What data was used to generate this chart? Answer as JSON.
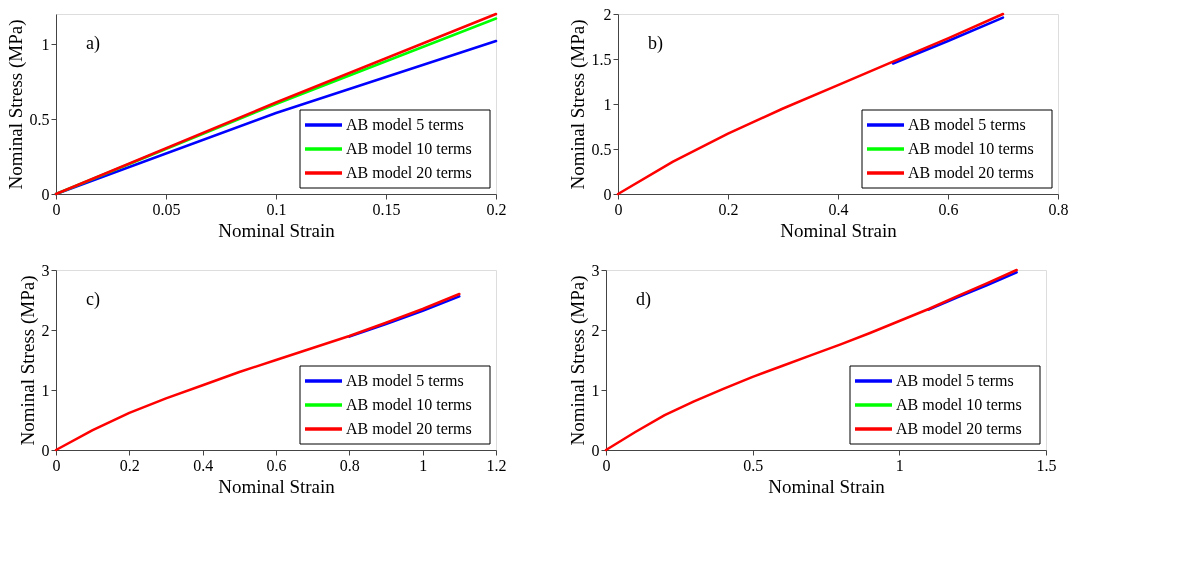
{
  "chart_data": [
    {
      "type": "line",
      "xlabel": "Nominal Strain",
      "ylabel": "Nominal Stress (MPa)",
      "annotations": [
        "a)"
      ],
      "x": [
        0,
        0.1,
        0.2
      ],
      "xlim": [
        0,
        0.2
      ],
      "xticks": [
        0,
        0.05,
        0.1,
        0.15,
        0.2
      ],
      "ylim": [
        0,
        1.2
      ],
      "yticks": [
        0,
        0.5,
        1
      ],
      "legend": "bottom right",
      "series": [
        {
          "name": "AB model 5 terms",
          "color": "#0000ff",
          "values": [
            0,
            0.54,
            1.02
          ]
        },
        {
          "name": "AB model 10 terms",
          "color": "#00ff00",
          "values": [
            0,
            0.6,
            1.17
          ]
        },
        {
          "name": "AB model 20 terms",
          "color": "#ff0000",
          "values": [
            0,
            0.61,
            1.2
          ]
        }
      ]
    },
    {
      "type": "line",
      "xlabel": "Nominal Strain",
      "ylabel": "Nominal Stress (MPa)",
      "annotations": [
        "b)"
      ],
      "x": [
        0,
        0.1,
        0.2,
        0.3,
        0.4,
        0.5,
        0.6,
        0.7
      ],
      "xlim": [
        0,
        0.8
      ],
      "xticks": [
        0,
        0.2,
        0.4,
        0.6,
        0.8
      ],
      "ylim": [
        0,
        2
      ],
      "yticks": [
        0,
        0.5,
        1,
        1.5,
        2
      ],
      "legend": "bottom right",
      "series": [
        {
          "name": "AB model 5 terms",
          "color": "#0000ff",
          "values": [
            null,
            null,
            null,
            null,
            null,
            1.45,
            1.7,
            1.96
          ]
        },
        {
          "name": "AB model 10 terms",
          "color": "#00ff00",
          "values": [
            null,
            null,
            null,
            null,
            null,
            null,
            null,
            null
          ]
        },
        {
          "name": "AB model 20 terms",
          "color": "#ff0000",
          "values": [
            0,
            0.36,
            0.67,
            0.95,
            1.21,
            1.47,
            1.73,
            2.0
          ]
        }
      ]
    },
    {
      "type": "line",
      "xlabel": "Nominal Strain",
      "ylabel": "Nominal Stress (MPa)",
      "annotations": [
        "c)"
      ],
      "x": [
        0,
        0.1,
        0.2,
        0.3,
        0.4,
        0.5,
        0.6,
        0.7,
        0.8,
        0.9,
        1.0,
        1.1
      ],
      "xlim": [
        0,
        1.2
      ],
      "xticks": [
        0,
        0.2,
        0.4,
        0.6,
        0.8,
        1,
        1.2
      ],
      "ylim": [
        0,
        3
      ],
      "yticks": [
        0,
        1,
        2,
        3
      ],
      "legend": "bottom right",
      "series": [
        {
          "name": "AB model 5 terms",
          "color": "#0000ff",
          "values": [
            null,
            null,
            null,
            null,
            null,
            null,
            null,
            null,
            1.89,
            2.1,
            2.32,
            2.56
          ]
        },
        {
          "name": "AB model 10 terms",
          "color": "#00ff00",
          "values": [
            null,
            null,
            null,
            null,
            null,
            null,
            null,
            null,
            null,
            null,
            null,
            null
          ]
        },
        {
          "name": "AB model 20 terms",
          "color": "#ff0000",
          "values": [
            0,
            0.33,
            0.62,
            0.86,
            1.08,
            1.3,
            1.5,
            1.7,
            1.9,
            2.12,
            2.35,
            2.6
          ]
        }
      ]
    },
    {
      "type": "line",
      "xlabel": "Nominal Strain",
      "ylabel": "Nominal Stress (MPa)",
      "annotations": [
        "d)"
      ],
      "x": [
        0,
        0.1,
        0.2,
        0.3,
        0.4,
        0.5,
        0.6,
        0.7,
        0.8,
        0.9,
        1.0,
        1.1,
        1.2,
        1.3,
        1.4
      ],
      "xlim": [
        0,
        1.5
      ],
      "xticks": [
        0,
        0.5,
        1,
        1.5
      ],
      "ylim": [
        0,
        3
      ],
      "yticks": [
        0,
        1,
        2,
        3
      ],
      "legend": "bottom right",
      "series": [
        {
          "name": "AB model 5 terms",
          "color": "#0000ff",
          "values": [
            null,
            null,
            null,
            null,
            null,
            null,
            null,
            null,
            null,
            null,
            null,
            2.34,
            2.55,
            2.75,
            2.96
          ]
        },
        {
          "name": "AB model 10 terms",
          "color": "#00ff00",
          "values": [
            null,
            null,
            null,
            null,
            null,
            null,
            null,
            null,
            null,
            null,
            null,
            null,
            null,
            null,
            null
          ]
        },
        {
          "name": "AB model 20 terms",
          "color": "#ff0000",
          "values": [
            0,
            0.3,
            0.58,
            0.81,
            1.02,
            1.22,
            1.4,
            1.58,
            1.76,
            1.95,
            2.15,
            2.35,
            2.57,
            2.78,
            3.0
          ]
        }
      ]
    }
  ]
}
